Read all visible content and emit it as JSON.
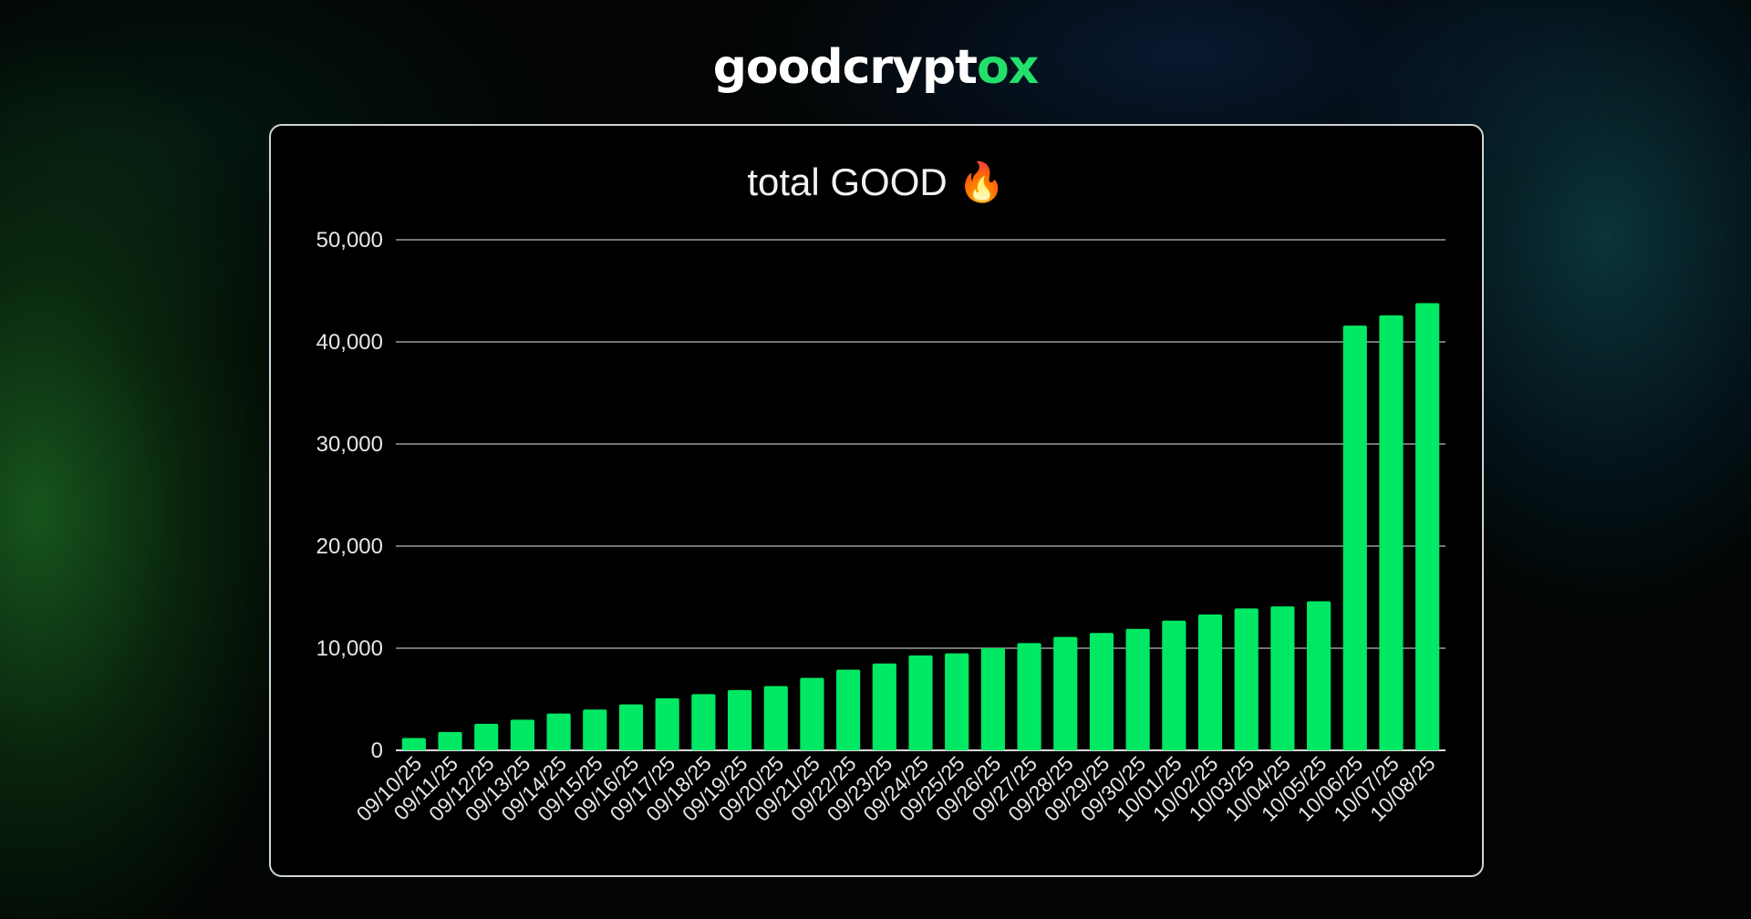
{
  "brand": {
    "logo_main": "goodcrypt",
    "logo_accent": "ox",
    "accent_color": "#22e06a"
  },
  "chart_data": {
    "type": "bar",
    "title": "total GOOD 🔥",
    "xlabel": "",
    "ylabel": "",
    "ylim": [
      0,
      50000
    ],
    "yticks": [
      "0",
      "10,000",
      "20,000",
      "30,000",
      "40,000",
      "50,000"
    ],
    "ytick_values": [
      0,
      10000,
      20000,
      30000,
      40000,
      50000
    ],
    "grid": true,
    "bar_color": "#00e864",
    "categories": [
      "09/10/25",
      "09/11/25",
      "09/12/25",
      "09/13/25",
      "09/14/25",
      "09/15/25",
      "09/16/25",
      "09/17/25",
      "09/18/25",
      "09/19/25",
      "09/20/25",
      "09/21/25",
      "09/22/25",
      "09/23/25",
      "09/24/25",
      "09/25/25",
      "09/26/25",
      "09/27/25",
      "09/28/25",
      "09/29/25",
      "09/30/25",
      "10/01/25",
      "10/02/25",
      "10/03/25",
      "10/04/25",
      "10/05/25",
      "10/06/25",
      "10/07/25",
      "10/08/25"
    ],
    "values": [
      1200,
      1800,
      2600,
      3000,
      3600,
      4000,
      4500,
      5100,
      5500,
      5900,
      6300,
      7100,
      7900,
      8500,
      9300,
      9500,
      10000,
      10500,
      11100,
      11500,
      11900,
      12700,
      13300,
      13900,
      14100,
      14600,
      41600,
      42600,
      43800
    ]
  }
}
